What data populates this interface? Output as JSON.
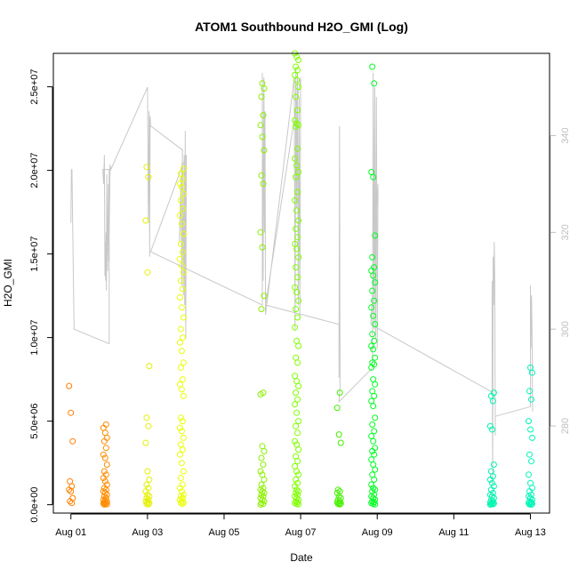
{
  "chart_data": {
    "type": "scatter",
    "title": "ATOM1 Southbound H2O_GMI (Log)",
    "xlabel": "Date",
    "ylabel": "H2O_GMI",
    "xlim": [
      "2016-07-31T13:00",
      "2016-08-13T12:00"
    ],
    "ylim": [
      -500000,
      27000000
    ],
    "y2lim": [
      262,
      357
    ],
    "grid": false,
    "legend": "none",
    "x_ticks": [
      {
        "date": "2016-08-01",
        "label": "Aug 01"
      },
      {
        "date": "2016-08-03",
        "label": "Aug 03"
      },
      {
        "date": "2016-08-05",
        "label": "Aug 05"
      },
      {
        "date": "2016-08-07",
        "label": "Aug 07"
      },
      {
        "date": "2016-08-09",
        "label": "Aug 09"
      },
      {
        "date": "2016-08-11",
        "label": "Aug 11"
      },
      {
        "date": "2016-08-13",
        "label": "Aug 13"
      }
    ],
    "y_ticks": [
      {
        "value": 0,
        "label": "0.0e+00"
      },
      {
        "value": 5000000,
        "label": "5.0e+06"
      },
      {
        "value": 10000000,
        "label": "1.0e+07"
      },
      {
        "value": 15000000,
        "label": "1.5e+07"
      },
      {
        "value": 20000000,
        "label": "2.0e+07"
      },
      {
        "value": 25000000,
        "label": "2.5e+07"
      }
    ],
    "y2_ticks": [
      {
        "value": 280,
        "label": "280"
      },
      {
        "value": 300,
        "label": "300"
      },
      {
        "value": 320,
        "label": "320"
      },
      {
        "value": 340,
        "label": "340"
      }
    ],
    "y2_color": "#bfbfbf",
    "line_color": "#c8c8c8",
    "point_groups": [
      {
        "time": "2016-08-01T00:00",
        "color": "#ff7f00",
        "points": [
          7100000,
          5500000,
          3800000,
          1400000,
          1100000,
          900000,
          800000,
          400000,
          200000,
          100000
        ]
      },
      {
        "time": "2016-08-01T21:30",
        "color": "#ff8c00",
        "points": [
          4800000,
          4600000,
          4300000,
          4000000,
          3800000,
          3400000,
          3000000,
          2800000,
          2400000,
          2000000,
          1800000,
          1600000,
          1400000,
          1200000,
          1000000,
          900000,
          800000,
          700000,
          600000,
          500000,
          400000,
          300000,
          250000,
          200000,
          150000,
          100000,
          80000,
          50000,
          30000,
          10000
        ]
      },
      {
        "time": "2016-08-03T00:00",
        "color": "#e5f000",
        "points": [
          20200000,
          19600000,
          17000000,
          13900000,
          8300000,
          5200000,
          4700000,
          3700000,
          2000000,
          1500000,
          1200000,
          1000000,
          800000,
          600000,
          500000,
          400000,
          300000,
          200000,
          150000,
          100000,
          50000,
          20000
        ]
      },
      {
        "time": "2016-08-03T21:30",
        "color": "#eaff00",
        "points": [
          20100000,
          19800000,
          19500000,
          19200000,
          19000000,
          18600000,
          18200000,
          17700000,
          17300000,
          16800000,
          16200000,
          15600000,
          15100000,
          14700000,
          14300000,
          13900000,
          13400000,
          12900000,
          12400000,
          11800000,
          11200000,
          10500000,
          10000000,
          9700000,
          9200000,
          8500000,
          8200000,
          7500000,
          7200000,
          6900000,
          6500000,
          5200000,
          5000000,
          4600000,
          4400000,
          4000000,
          3600000,
          3300000,
          3000000,
          2500000,
          2000000,
          1600000,
          1200000,
          1000000,
          800000,
          600000,
          500000,
          400000,
          300000,
          200000,
          150000,
          100000,
          50000
        ]
      },
      {
        "time": "2016-08-06T00:00",
        "color": "#8cf000",
        "points": [
          25200000,
          24900000,
          24400000,
          23300000,
          22700000,
          22000000,
          21200000,
          19700000,
          19200000,
          16300000,
          15400000,
          12500000,
          11700000,
          6700000,
          6600000,
          3500000,
          3200000,
          2800000,
          2400000,
          2000000,
          1800000,
          1500000,
          1200000,
          1000000,
          900000,
          800000,
          700000,
          600000,
          500000,
          400000,
          300000,
          200000,
          100000,
          50000,
          10000
        ]
      },
      {
        "time": "2016-08-06T21:30",
        "color": "#7fff00",
        "points": [
          27000000,
          26800000,
          26600000,
          26200000,
          26000000,
          25700000,
          25400000,
          25000000,
          24400000,
          23600000,
          23000000,
          22800000,
          22700000,
          22600000,
          21300000,
          20700000,
          20300000,
          19900000,
          19600000,
          18700000,
          18200000,
          17600000,
          17000000,
          16500000,
          16000000,
          15600000,
          15300000,
          14800000,
          14200000,
          13600000,
          13000000,
          12700000,
          12200000,
          11700000,
          11200000,
          10600000,
          9800000,
          9500000,
          8800000,
          8500000,
          7700000,
          7400000,
          7100000,
          6700000,
          6300000,
          6000000,
          5500000,
          5000000,
          4700000,
          4300000,
          3800000,
          3600000,
          3300000,
          2900000,
          2600000,
          2300000,
          2000000,
          1800000,
          1500000,
          1300000,
          1100000,
          900000,
          800000,
          700000,
          600000,
          500000,
          400000,
          300000,
          200000,
          150000,
          100000,
          50000,
          20000
        ]
      },
      {
        "time": "2016-08-08T00:00",
        "color": "#46f000",
        "points": [
          6700000,
          5800000,
          4200000,
          3700000,
          900000,
          800000,
          700000,
          500000,
          400000,
          300000,
          200000,
          150000,
          100000,
          80000,
          50000,
          20000
        ]
      },
      {
        "time": "2016-08-08T21:30",
        "color": "#00ff22",
        "points": [
          26200000,
          25200000,
          19900000,
          19600000,
          16100000,
          14800000,
          14200000,
          14000000,
          13700000,
          13300000,
          12800000,
          12200000,
          11800000,
          11300000,
          10800000,
          10200000,
          9800000,
          9500000,
          9300000,
          8800000,
          8500000,
          8400000,
          8200000,
          7500000,
          7200000,
          6800000,
          6500000,
          6200000,
          5900000,
          5200000,
          4800000,
          4400000,
          4100000,
          3800000,
          3400000,
          3200000,
          3000000,
          2700000,
          2400000,
          2100000,
          1800000,
          1500000,
          1200000,
          1000000,
          900000,
          800000,
          600000,
          500000,
          400000,
          300000,
          200000,
          150000,
          100000,
          50000,
          20000
        ]
      },
      {
        "time": "2016-08-12T00:00",
        "color": "#00f5b0",
        "points": [
          6700000,
          6500000,
          6200000,
          4700000,
          4500000,
          2400000,
          2000000,
          1700000,
          1500000,
          1300000,
          1100000,
          900000,
          700000,
          600000,
          500000,
          400000,
          300000,
          200000,
          150000,
          100000,
          80000,
          50000,
          30000,
          10000
        ]
      },
      {
        "time": "2016-08-13T00:00",
        "color": "#00f5b8",
        "points": [
          8200000,
          7900000,
          6800000,
          6300000,
          5000000,
          4500000,
          4000000,
          3000000,
          2600000,
          1800000,
          1300000,
          1000000,
          800000,
          600000,
          500000,
          400000,
          300000,
          200000,
          150000,
          100000,
          80000,
          50000,
          20000,
          10000
        ]
      }
    ],
    "y2_series": {
      "name": "",
      "points": [
        [
          "2016-08-01T00:00",
          322
        ],
        [
          "2016-08-01T00:20",
          333
        ],
        [
          "2016-08-01T00:40",
          333
        ],
        [
          "2016-08-01T02:00",
          300
        ],
        [
          "2016-08-02T00:00",
          297
        ],
        [
          "2016-08-02T00:00",
          333
        ],
        [
          "2016-08-01T20:00",
          333
        ],
        [
          "2016-08-01T20:30",
          330
        ],
        [
          "2016-08-01T21:00",
          336
        ],
        [
          "2016-08-01T21:20",
          311
        ],
        [
          "2016-08-01T21:30",
          318
        ],
        [
          "2016-08-01T21:45",
          310
        ],
        [
          "2016-08-01T22:00",
          320
        ],
        [
          "2016-08-01T22:15",
          308
        ],
        [
          "2016-08-01T22:30",
          332
        ],
        [
          "2016-08-01T23:00",
          312
        ],
        [
          "2016-08-01T23:30",
          330
        ],
        [
          "2016-08-01T23:50",
          314
        ],
        [
          "2016-08-02T00:30",
          334
        ],
        [
          "2016-08-02T01:00",
          333
        ],
        [
          "2016-08-03T00:00",
          350
        ],
        [
          "2016-08-03T00:30",
          322
        ],
        [
          "2016-08-03T01:00",
          345
        ],
        [
          "2016-08-03T01:20",
          315
        ],
        [
          "2016-08-03T01:40",
          344
        ],
        [
          "2016-08-03T02:00",
          342
        ],
        [
          "2016-08-03T22:00",
          337
        ],
        [
          "2016-08-03T20:00",
          318
        ],
        [
          "2016-08-03T21:00",
          331
        ],
        [
          "2016-08-03T21:30",
          309
        ],
        [
          "2016-08-03T22:00",
          334
        ],
        [
          "2016-08-03T22:30",
          307
        ],
        [
          "2016-08-03T23:00",
          336
        ],
        [
          "2016-08-03T23:20",
          305
        ],
        [
          "2016-08-03T23:40",
          341
        ],
        [
          "2016-08-04T00:00",
          298
        ],
        [
          "2016-08-04T00:20",
          336
        ],
        [
          "2016-08-03T02:00",
          316
        ],
        [
          "2016-08-06T00:00",
          305
        ],
        [
          "2016-08-06T00:00",
          353
        ],
        [
          "2016-08-06T00:30",
          310
        ],
        [
          "2016-08-06T01:00",
          352
        ],
        [
          "2016-08-06T01:20",
          320
        ],
        [
          "2016-08-06T01:40",
          345
        ],
        [
          "2016-08-06T02:00",
          303
        ],
        [
          "2016-08-06T20:00",
          352
        ],
        [
          "2016-08-06T20:30",
          300
        ],
        [
          "2016-08-06T21:00",
          354
        ],
        [
          "2016-08-06T21:30",
          325
        ],
        [
          "2016-08-06T22:00",
          353
        ],
        [
          "2016-08-06T22:30",
          305
        ],
        [
          "2016-08-06T23:00",
          348
        ],
        [
          "2016-08-06T23:30",
          302
        ],
        [
          "2016-08-07T00:00",
          352
        ],
        [
          "2016-08-06T02:00",
          305
        ],
        [
          "2016-08-08T00:00",
          301
        ],
        [
          "2016-08-08T00:00",
          290
        ],
        [
          "2016-08-08T00:20",
          342
        ],
        [
          "2016-08-08T00:40",
          288
        ],
        [
          "2016-08-08T00:00",
          285
        ],
        [
          "2016-08-08T21:00",
          292
        ],
        [
          "2016-08-08T21:30",
          353
        ],
        [
          "2016-08-08T22:00",
          300
        ],
        [
          "2016-08-08T22:30",
          350
        ],
        [
          "2016-08-08T23:00",
          298
        ],
        [
          "2016-08-08T23:30",
          348
        ],
        [
          "2016-08-09T00:00",
          296
        ],
        [
          "2016-08-09T00:30",
          330
        ],
        [
          "2016-08-08T20:00",
          301
        ],
        [
          "2016-08-12T00:00",
          287
        ],
        [
          "2016-08-12T00:00",
          310
        ],
        [
          "2016-08-12T00:20",
          268
        ],
        [
          "2016-08-12T00:40",
          315
        ],
        [
          "2016-08-12T01:00",
          305
        ],
        [
          "2016-08-12T01:20",
          318
        ],
        [
          "2016-08-12T01:40",
          310
        ],
        [
          "2016-08-12T02:00",
          278
        ],
        [
          "2016-08-12T02:00",
          282
        ],
        [
          "2016-08-13T00:00",
          284
        ],
        [
          "2016-08-13T00:00",
          309
        ],
        [
          "2016-08-13T00:20",
          296
        ],
        [
          "2016-08-13T00:40",
          307
        ],
        [
          "2016-08-13T01:00",
          300
        ],
        [
          "2016-08-13T01:20",
          283
        ]
      ]
    }
  }
}
